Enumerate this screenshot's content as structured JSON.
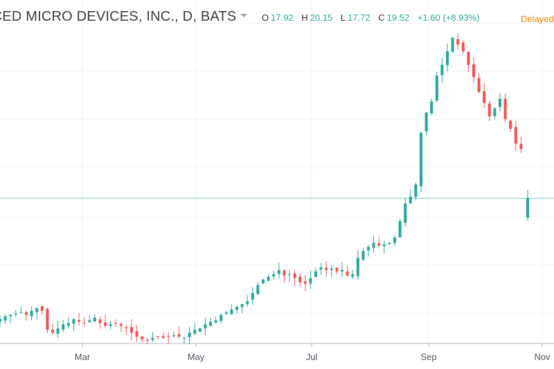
{
  "header": {
    "title": "NCED MICRO DEVICES, INC., D, BATS",
    "dropdown_icon": "caret-down-icon",
    "ohlc": {
      "open_label": "O",
      "open": "17.92",
      "high_label": "H",
      "high": "20.15",
      "low_label": "L",
      "low": "17.72",
      "close_label": "C",
      "close": "19.52",
      "change": "+1.60 (+8.93%)"
    },
    "status": "Delayed"
  },
  "colors": {
    "up": "#26a69a",
    "down": "#ef5350",
    "grid": "#f0f3fa",
    "axis_text": "#4c525e",
    "price_line": "#26a69a"
  },
  "chart_data": {
    "type": "candlestick",
    "title": "",
    "xlabel": "",
    "ylabel": "",
    "x_ticks": [
      "Mar",
      "May",
      "Jul",
      "Sep",
      "Nov"
    ],
    "price_line": 19.52,
    "last_candle": {
      "open": 17.92,
      "high": 20.15,
      "low": 17.72,
      "close": 19.52
    },
    "grid": true,
    "legend": "none",
    "ylim": [
      10.5,
      34.5
    ],
    "series_close_approx": [
      12.3,
      12.5,
      12.6,
      12.7,
      12.8,
      12.6,
      12.9,
      13.1,
      12.9,
      11.5,
      11.3,
      11.6,
      11.9,
      12.0,
      12.3,
      12.1,
      12.0,
      12.2,
      12.4,
      12.0,
      11.8,
      11.9,
      12.0,
      11.8,
      11.6,
      11.3,
      11.0,
      10.8,
      10.7,
      10.9,
      11.0,
      10.9,
      11.0,
      11.1,
      11.0,
      10.9,
      11.3,
      11.5,
      11.6,
      11.9,
      12.1,
      12.2,
      12.6,
      12.8,
      13.0,
      13.2,
      13.4,
      13.6,
      14.2,
      14.8,
      15.2,
      15.4,
      15.6,
      15.9,
      15.5,
      15.6,
      15.3,
      15.0,
      14.9,
      15.3,
      15.8,
      16.1,
      15.9,
      16.0,
      15.8,
      15.9,
      15.5,
      15.6,
      16.8,
      17.3,
      17.6,
      17.9,
      17.7,
      17.8,
      17.9,
      18.3,
      19.5,
      20.8,
      21.3,
      22.2,
      26.0,
      27.5,
      28.3,
      30.2,
      31.0,
      32.0,
      33.0,
      32.5,
      32.0,
      31.0,
      30.1,
      29.0,
      28.2,
      27.2,
      27.8,
      28.5,
      27.0,
      26.3,
      25.2,
      24.8,
      19.52
    ]
  }
}
